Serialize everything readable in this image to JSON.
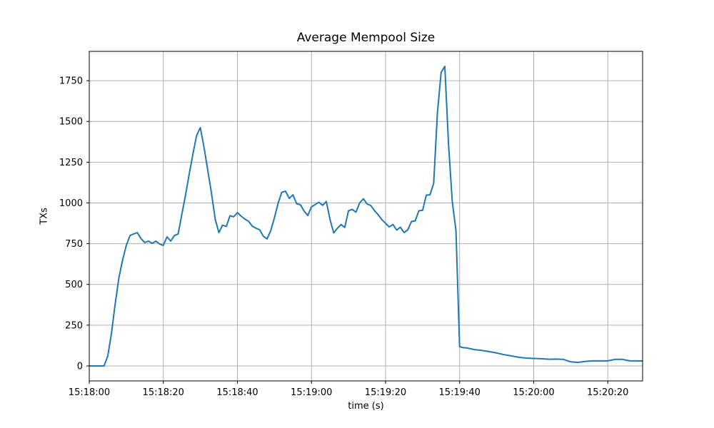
{
  "chart_data": {
    "type": "line",
    "title": "Average Mempool Size",
    "xlabel": "time (s)",
    "ylabel": "TXs",
    "legend": "none",
    "grid": true,
    "colors": {
      "line": "#1f77b4",
      "grid": "#b0b0b0",
      "spine": "#000000",
      "text": "#000000",
      "background": "#ffffff"
    },
    "x_axis": {
      "unit": "clock time, seconds offset from first tick",
      "lim_s": [
        0,
        149.4
      ],
      "ticks": [
        {
          "s": 0,
          "label": "15:18:00"
        },
        {
          "s": 20,
          "label": "15:18:20"
        },
        {
          "s": 40,
          "label": "15:18:40"
        },
        {
          "s": 60,
          "label": "15:19:00"
        },
        {
          "s": 80,
          "label": "15:19:20"
        },
        {
          "s": 100,
          "label": "15:19:40"
        },
        {
          "s": 120,
          "label": "15:20:00"
        },
        {
          "s": 140,
          "label": "15:20:20"
        }
      ]
    },
    "y_axis": {
      "lim": [
        -92,
        1930
      ],
      "ticks": [
        0,
        250,
        500,
        750,
        1000,
        1250,
        1500,
        1750
      ]
    },
    "series": [
      {
        "name": "average mempool size",
        "points": [
          [
            0,
            0
          ],
          [
            2,
            0
          ],
          [
            4,
            0
          ],
          [
            5,
            60
          ],
          [
            6,
            200
          ],
          [
            7,
            380
          ],
          [
            8,
            540
          ],
          [
            9,
            650
          ],
          [
            10,
            740
          ],
          [
            11,
            800
          ],
          [
            12,
            810
          ],
          [
            13,
            818
          ],
          [
            14,
            780
          ],
          [
            15,
            757
          ],
          [
            16,
            766
          ],
          [
            17,
            752
          ],
          [
            18,
            766
          ],
          [
            19,
            748
          ],
          [
            20,
            739
          ],
          [
            21,
            792
          ],
          [
            22,
            766
          ],
          [
            23,
            800
          ],
          [
            24,
            810
          ],
          [
            25,
            930
          ],
          [
            26,
            1050
          ],
          [
            27,
            1180
          ],
          [
            28,
            1300
          ],
          [
            29,
            1415
          ],
          [
            30,
            1462
          ],
          [
            31,
            1340
          ],
          [
            32,
            1200
          ],
          [
            33,
            1060
          ],
          [
            34,
            900
          ],
          [
            35,
            818
          ],
          [
            36,
            864
          ],
          [
            37,
            855
          ],
          [
            38,
            921
          ],
          [
            39,
            915
          ],
          [
            40,
            941
          ],
          [
            41,
            919
          ],
          [
            42,
            901
          ],
          [
            43,
            888
          ],
          [
            44,
            858
          ],
          [
            45,
            845
          ],
          [
            46,
            836
          ],
          [
            47,
            796
          ],
          [
            48,
            779
          ],
          [
            49,
            830
          ],
          [
            50,
            910
          ],
          [
            51,
            1000
          ],
          [
            52,
            1065
          ],
          [
            53,
            1072
          ],
          [
            54,
            1028
          ],
          [
            55,
            1050
          ],
          [
            56,
            995
          ],
          [
            57,
            989
          ],
          [
            58,
            950
          ],
          [
            59,
            923
          ],
          [
            60,
            976
          ],
          [
            61,
            990
          ],
          [
            62,
            1004
          ],
          [
            63,
            985
          ],
          [
            64,
            1009
          ],
          [
            65,
            899
          ],
          [
            66,
            816
          ],
          [
            67,
            845
          ],
          [
            68,
            868
          ],
          [
            69,
            850
          ],
          [
            70,
            952
          ],
          [
            71,
            960
          ],
          [
            72,
            943
          ],
          [
            73,
            1000
          ],
          [
            74,
            1026
          ],
          [
            75,
            993
          ],
          [
            76,
            985
          ],
          [
            77,
            953
          ],
          [
            78,
            928
          ],
          [
            79,
            898
          ],
          [
            80,
            875
          ],
          [
            81,
            853
          ],
          [
            82,
            868
          ],
          [
            83,
            833
          ],
          [
            84,
            851
          ],
          [
            85,
            818
          ],
          [
            86,
            835
          ],
          [
            87,
            886
          ],
          [
            88,
            890
          ],
          [
            89,
            952
          ],
          [
            90,
            955
          ],
          [
            91,
            1048
          ],
          [
            92,
            1050
          ],
          [
            93,
            1120
          ],
          [
            94,
            1550
          ],
          [
            95,
            1800
          ],
          [
            96,
            1838
          ],
          [
            97,
            1360
          ],
          [
            98,
            1010
          ],
          [
            99,
            830
          ],
          [
            100,
            118
          ],
          [
            101,
            112
          ],
          [
            102,
            110
          ],
          [
            104,
            100
          ],
          [
            106,
            95
          ],
          [
            108,
            88
          ],
          [
            110,
            79
          ],
          [
            112,
            69
          ],
          [
            114,
            61
          ],
          [
            116,
            53
          ],
          [
            118,
            48
          ],
          [
            120,
            46
          ],
          [
            122,
            44
          ],
          [
            124,
            41
          ],
          [
            126,
            42
          ],
          [
            128,
            40
          ],
          [
            130,
            25
          ],
          [
            132,
            22
          ],
          [
            134,
            28
          ],
          [
            136,
            31
          ],
          [
            138,
            31
          ],
          [
            140,
            31
          ],
          [
            142,
            40
          ],
          [
            144,
            40
          ],
          [
            145,
            35
          ],
          [
            146,
            31
          ],
          [
            148,
            31
          ],
          [
            149.4,
            30
          ]
        ]
      }
    ],
    "peak_value": 1838,
    "first_peak_value": 1462
  }
}
